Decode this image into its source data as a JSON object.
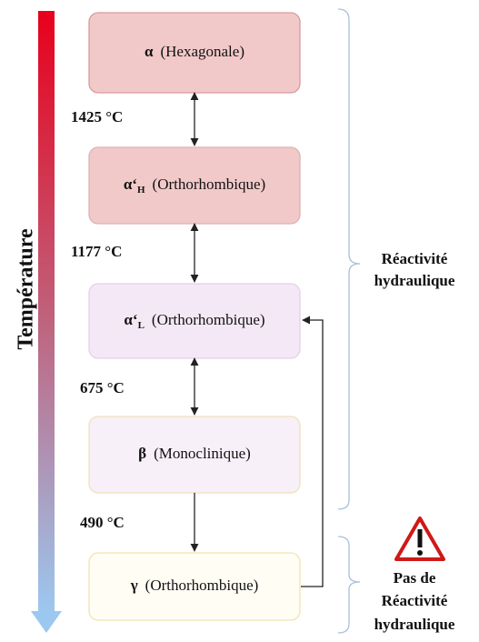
{
  "axis_label": "Température",
  "nodes": [
    {
      "symbol": "α",
      "name": "(Hexagonale)"
    },
    {
      "symbol": "α‘",
      "subscript": "H",
      "name": "(Orthorhombique)"
    },
    {
      "symbol": "α‘",
      "subscript": "L",
      "name": "(Orthorhombique)"
    },
    {
      "symbol": "β",
      "name": "(Monoclinique)"
    },
    {
      "symbol": "γ",
      "name": "(Orthorhombique)"
    }
  ],
  "transitions": [
    "1425 °C",
    "1177 °C",
    "675 °C",
    "490 °C"
  ],
  "groups": [
    {
      "lines": [
        "Réactivité",
        "hydraulique"
      ]
    },
    {
      "lines": [
        "Pas de",
        "Réactivité",
        "hydraulique"
      ]
    }
  ]
}
